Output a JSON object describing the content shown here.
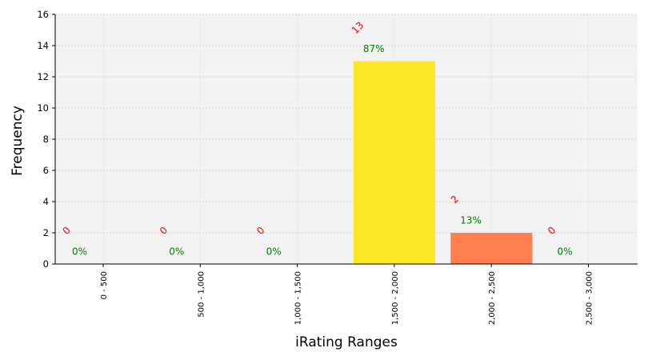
{
  "chart_data": {
    "type": "bar",
    "categories": [
      "0 - 500",
      "500 - 1,000",
      "1,000 - 1,500",
      "1,500 - 2,000",
      "2,000 - 2,500",
      "2,500 - 3,000"
    ],
    "values": [
      0,
      0,
      0,
      13,
      2,
      0
    ],
    "count_labels": [
      "0",
      "0",
      "0",
      "13",
      "2",
      "0"
    ],
    "percent_labels": [
      "0%",
      "0%",
      "0%",
      "87%",
      "13%",
      "0%"
    ],
    "bar_colors": [
      "#440154",
      "#3b528b",
      "#21918c",
      "#fde725",
      "#ff7f50",
      "#cccccc"
    ],
    "title": "",
    "xlabel": "iRating Ranges",
    "ylabel": "Frequency",
    "ylim": [
      0,
      16
    ],
    "yticks": [
      "0",
      "2",
      "4",
      "6",
      "8",
      "10",
      "12",
      "14",
      "16"
    ],
    "grid": true,
    "background": "#f2f2f2",
    "count_label_color": "#ff0000",
    "percent_label_color": "#008000"
  }
}
